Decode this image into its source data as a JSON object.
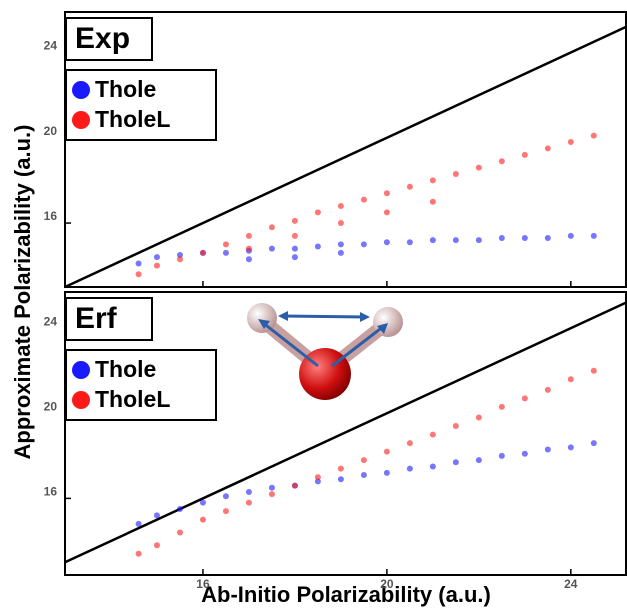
{
  "axis_labels": {
    "x": "Ab-Initio Polarizability (a.u.)",
    "y": "Approximate Polarizability (a.u.)"
  },
  "chart_data": [
    {
      "type": "scatter",
      "title": "Exp",
      "xlim": [
        13,
        25.2
      ],
      "ylim": [
        13,
        25.9
      ],
      "xticks": [
        16,
        20,
        24
      ],
      "yticks": [
        16,
        20,
        24
      ],
      "series": [
        {
          "name": "Thole",
          "color": "#1a1aff",
          "x": [
            14.6,
            15,
            15.5,
            16,
            16.5,
            17,
            17.5,
            18,
            18.5,
            19,
            19.5,
            20,
            20.5,
            21,
            21.5,
            22,
            22.5,
            23,
            23.5,
            24,
            24.5,
            17,
            18,
            19
          ],
          "values": [
            14.1,
            14.4,
            14.5,
            14.6,
            14.6,
            14.7,
            14.8,
            14.8,
            14.9,
            15.0,
            15.0,
            15.1,
            15.1,
            15.2,
            15.2,
            15.2,
            15.3,
            15.3,
            15.3,
            15.4,
            15.4,
            14.3,
            14.4,
            14.6
          ]
        },
        {
          "name": "TholeL",
          "color": "#ff1a1a",
          "x": [
            14.6,
            15,
            15.5,
            16,
            16.5,
            17,
            17.5,
            18,
            18.5,
            19,
            19.5,
            20,
            20.5,
            21,
            21.5,
            22,
            22.5,
            23,
            23.5,
            24,
            24.5,
            17,
            18,
            19,
            20,
            21
          ],
          "values": [
            13.6,
            14.0,
            14.3,
            14.6,
            15.0,
            15.4,
            15.8,
            16.1,
            16.5,
            16.8,
            17.1,
            17.4,
            17.7,
            18.0,
            18.3,
            18.6,
            18.9,
            19.2,
            19.5,
            19.8,
            20.1,
            14.8,
            15.4,
            16.0,
            16.5,
            17.0
          ]
        }
      ]
    },
    {
      "type": "scatter",
      "title": "Erf",
      "xlim": [
        13,
        25.2
      ],
      "ylim": [
        12.4,
        25.7
      ],
      "xticks": [
        16,
        20,
        24
      ],
      "yticks": [
        16,
        20,
        24
      ],
      "series": [
        {
          "name": "Thole",
          "color": "#1a1aff",
          "x": [
            14.6,
            15,
            15.5,
            16,
            16.5,
            17,
            17.5,
            18,
            18.5,
            19,
            19.5,
            20,
            20.5,
            21,
            21.5,
            22,
            22.5,
            23,
            23.5,
            24,
            24.5
          ],
          "values": [
            14.8,
            15.2,
            15.5,
            15.8,
            16.1,
            16.3,
            16.5,
            16.6,
            16.8,
            16.9,
            17.1,
            17.2,
            17.4,
            17.5,
            17.7,
            17.8,
            18.0,
            18.1,
            18.3,
            18.4,
            18.6
          ]
        },
        {
          "name": "TholeL",
          "color": "#ff1a1a",
          "x": [
            14.6,
            15,
            15.5,
            16,
            16.5,
            17,
            17.5,
            18,
            18.5,
            19,
            19.5,
            20,
            20.5,
            21,
            21.5,
            22,
            22.5,
            23,
            23.5,
            24,
            24.5
          ],
          "values": [
            13.4,
            13.8,
            14.4,
            15.0,
            15.4,
            15.8,
            16.2,
            16.6,
            17.0,
            17.4,
            17.8,
            18.2,
            18.6,
            19.0,
            19.4,
            19.8,
            20.3,
            20.7,
            21.1,
            21.6,
            22.0
          ]
        }
      ]
    }
  ]
}
